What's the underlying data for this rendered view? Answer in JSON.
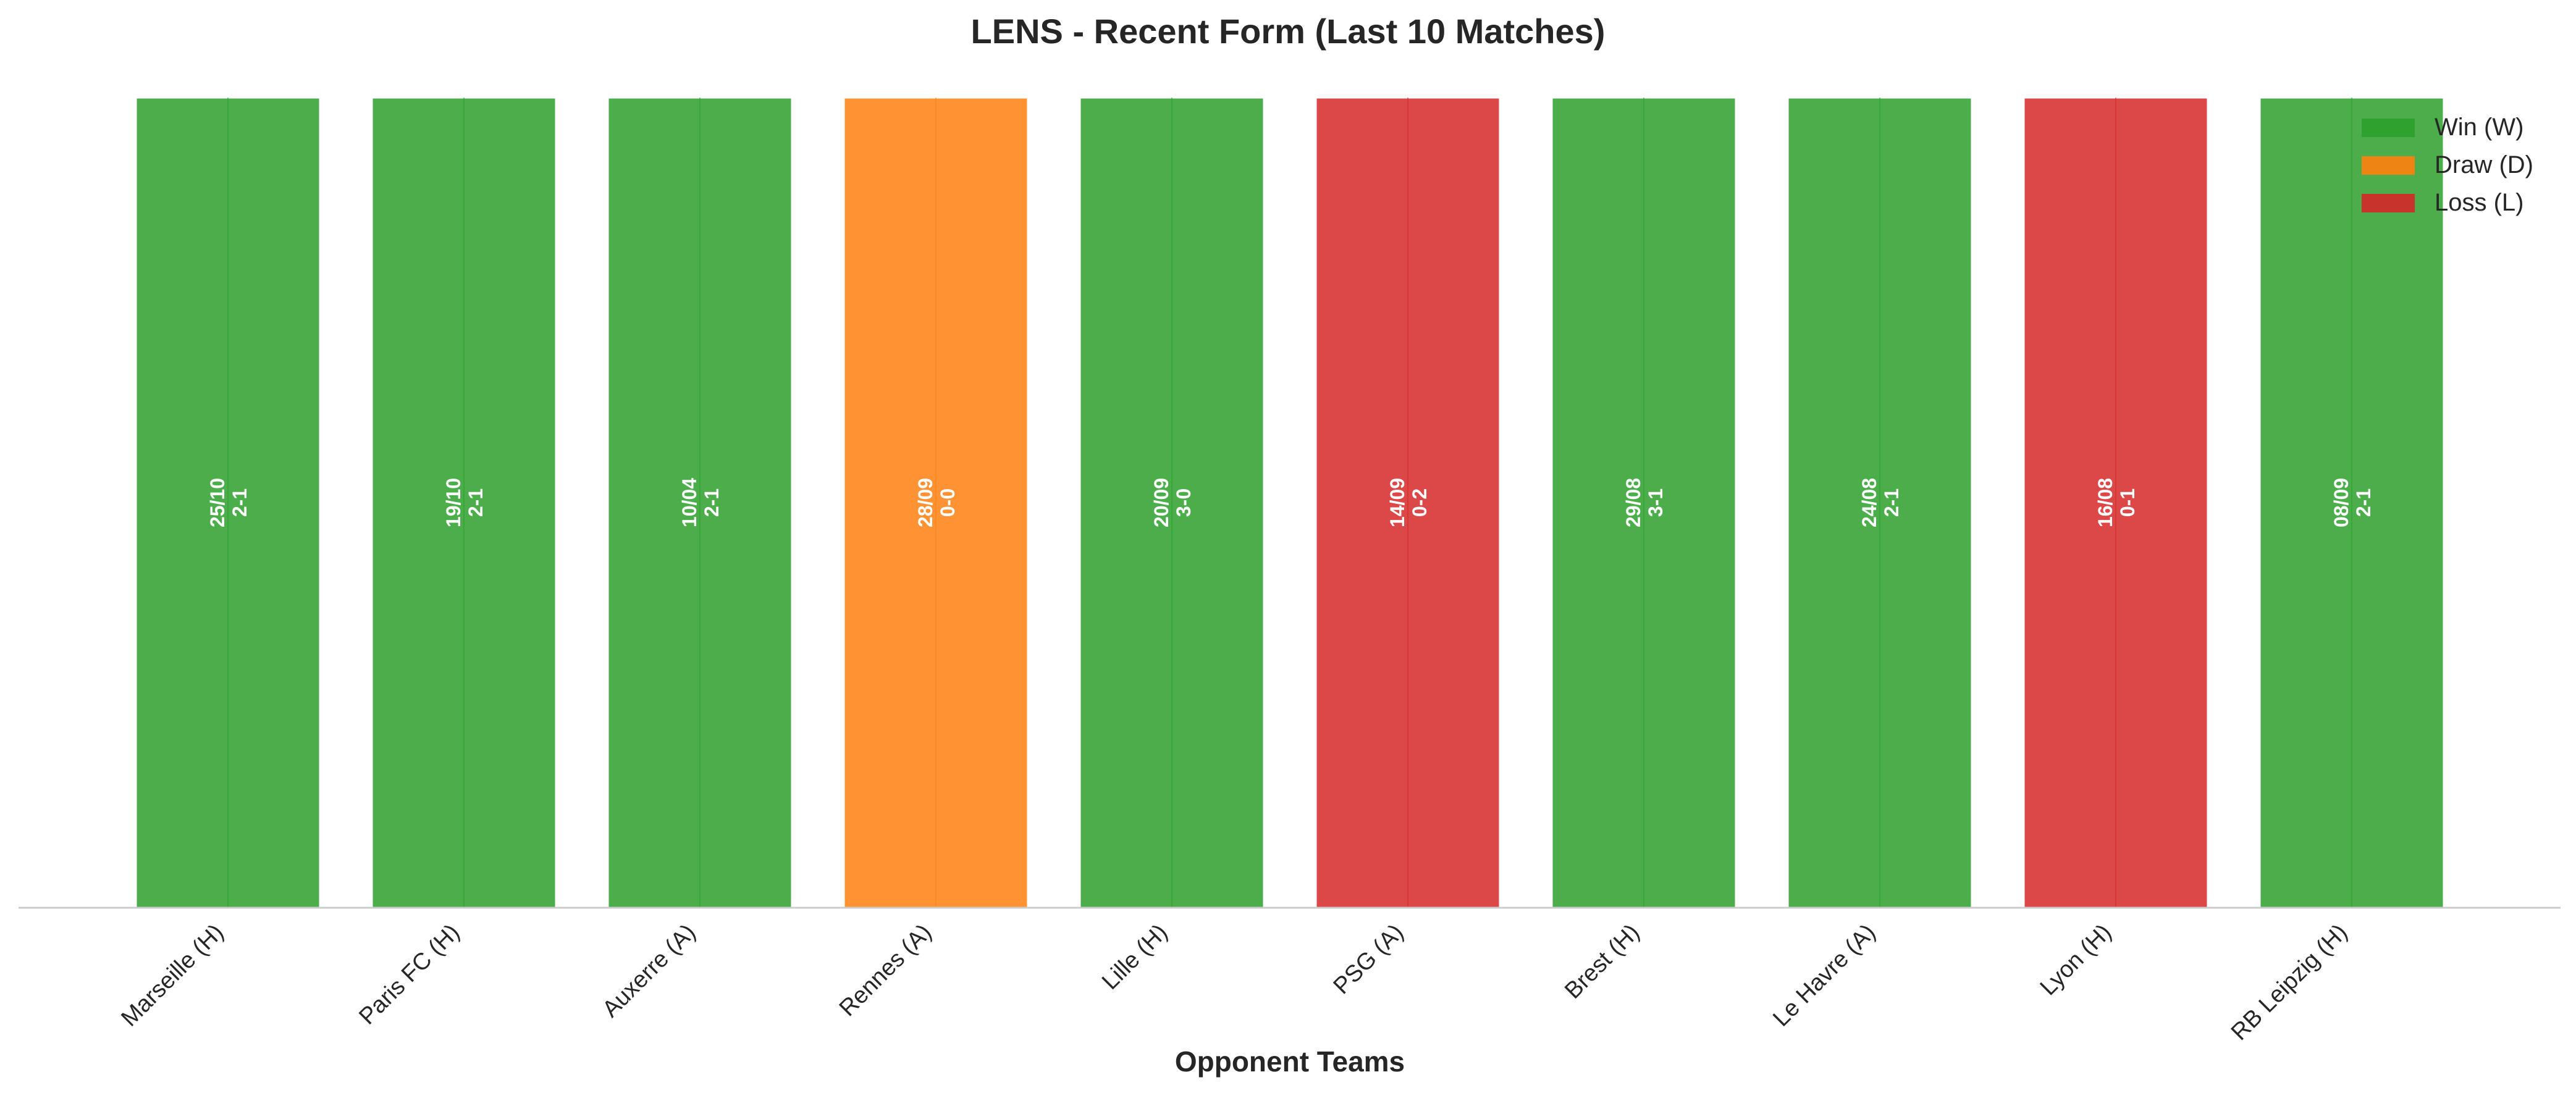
{
  "chart_data": {
    "type": "bar",
    "title": "LENS - Recent Form (Last 10 Matches)",
    "xlabel": "Opponent Teams",
    "ylabel": "",
    "categories": [
      "Marseille (H)",
      "Paris FC (H)",
      "Auxerre (A)",
      "Rennes (A)",
      "Lille (H)",
      "PSG (A)",
      "Brest (H)",
      "Le Havre (A)",
      "Lyon (H)",
      "RB Leipzig (H)"
    ],
    "values": [
      1,
      1,
      1,
      1,
      1,
      1,
      1,
      1,
      1,
      1
    ],
    "results": [
      "W",
      "W",
      "W",
      "D",
      "W",
      "L",
      "W",
      "W",
      "L",
      "W"
    ],
    "dates": [
      "25/10",
      "19/10",
      "10/04",
      "28/09",
      "20/09",
      "14/09",
      "29/08",
      "24/08",
      "16/08",
      "08/09"
    ],
    "scores": [
      "2-1",
      "2-1",
      "2-1",
      "0-0",
      "3-0",
      "0-2",
      "3-1",
      "2-1",
      "0-1",
      "2-1"
    ],
    "ylim": [
      0,
      1
    ],
    "grid": false,
    "legend_position": "top-right",
    "legend": [
      {
        "key": "W",
        "label": "Win (W)",
        "color": "#2ca02c"
      },
      {
        "key": "D",
        "label": "Draw (D)",
        "color": "#ff7f0e"
      },
      {
        "key": "L",
        "label": "Loss (L)",
        "color": "#d62728"
      }
    ]
  }
}
